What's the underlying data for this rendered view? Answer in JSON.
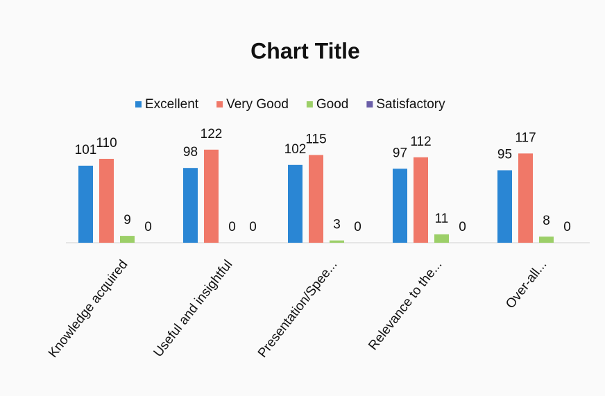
{
  "chart_data": {
    "type": "bar",
    "title": "Chart Title",
    "categories": [
      "Knowledge acquired",
      "Useful and insightful",
      "Presentation/Spee...",
      "Relevance to the...",
      "Over-all..."
    ],
    "series": [
      {
        "name": "Excellent",
        "color": "#2a86d4",
        "values": [
          101,
          98,
          102,
          97,
          95
        ]
      },
      {
        "name": "Very Good",
        "color": "#f07868",
        "values": [
          110,
          122,
          115,
          112,
          117
        ]
      },
      {
        "name": "Good",
        "color": "#9ccf68",
        "values": [
          9,
          0,
          3,
          11,
          8
        ]
      },
      {
        "name": "Satisfactory",
        "color": "#6a5ea8",
        "values": [
          0,
          0,
          0,
          0,
          0
        ]
      }
    ],
    "ylim": [
      0,
      130
    ],
    "legend": "top"
  }
}
